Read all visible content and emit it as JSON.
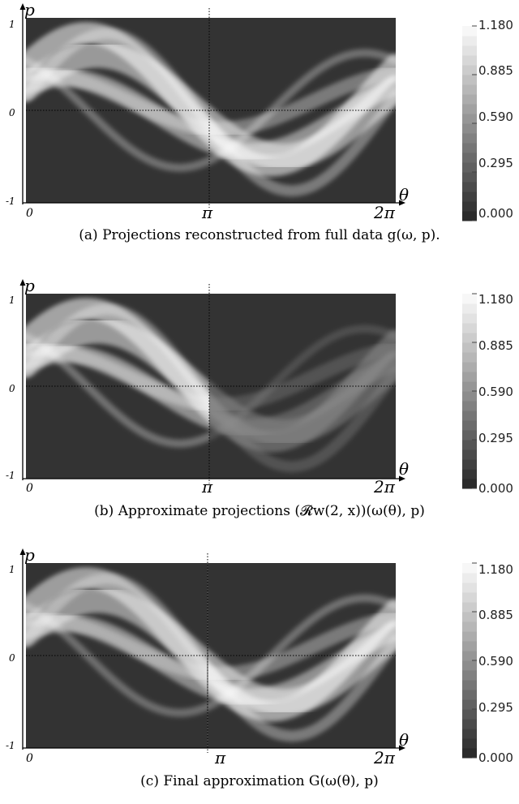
{
  "axis_labels": {
    "y_axis": "p",
    "x_axis": "θ",
    "y_ticks": [
      "1",
      "0",
      "-1"
    ],
    "x_ticks": [
      "0",
      "π",
      "2π"
    ]
  },
  "colorbar": {
    "ticks": [
      "1.180",
      "0.885",
      "0.590",
      "0.295",
      "0.000"
    ]
  },
  "panels": [
    {
      "id": "a",
      "caption": "(a) Projections reconstructed from full data g(ω, p).",
      "mode": "full"
    },
    {
      "id": "b",
      "caption": "(b) Approximate projections (𝓡w(2, x))(ω(θ), p)",
      "mode": "approx"
    },
    {
      "id": "c",
      "caption": "(c) Final approximation G(ω(θ), p)",
      "mode": "final"
    }
  ]
}
